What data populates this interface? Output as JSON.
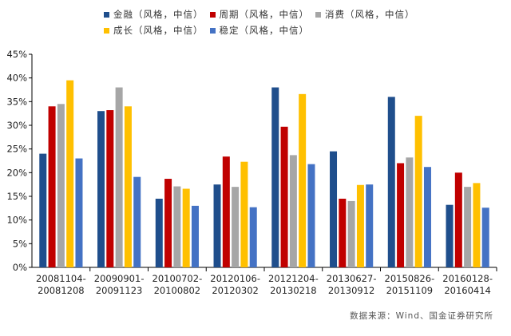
{
  "chart_data": {
    "type": "bar",
    "categories": [
      [
        "20081104-",
        "20081208"
      ],
      [
        "20090901-",
        "20091123"
      ],
      [
        "20100702-",
        "20100802"
      ],
      [
        "20120106-",
        "20120302"
      ],
      [
        "20121204-",
        "20130218"
      ],
      [
        "20130627-",
        "20130912"
      ],
      [
        "20150826-",
        "20151109"
      ],
      [
        "20160128-",
        "20160414"
      ]
    ],
    "series": [
      {
        "name": "金融（风格，中信）",
        "color": "#1f4e8c",
        "values": [
          24.0,
          33.0,
          14.5,
          17.5,
          38.0,
          24.5,
          36.0,
          13.2
        ]
      },
      {
        "name": "周期（风格，中信）",
        "color": "#c00000",
        "values": [
          34.0,
          33.2,
          18.7,
          23.4,
          29.7,
          14.5,
          22.0,
          20.0
        ]
      },
      {
        "name": "消费（风格，中信）",
        "color": "#a6a6a6",
        "values": [
          34.5,
          38.0,
          17.1,
          17.0,
          23.7,
          14.0,
          23.2,
          17.0
        ]
      },
      {
        "name": "成长（风格，中信）",
        "color": "#ffc000",
        "values": [
          39.5,
          34.0,
          16.6,
          22.3,
          36.6,
          17.4,
          32.0,
          17.8
        ]
      },
      {
        "name": "稳定（风格，中信）",
        "color": "#4472c4",
        "values": [
          23.0,
          19.1,
          13.0,
          12.7,
          21.8,
          17.5,
          21.2,
          12.6
        ]
      }
    ],
    "yticks": [
      "0%",
      "5%",
      "10%",
      "15%",
      "20%",
      "25%",
      "30%",
      "35%",
      "40%",
      "45%"
    ],
    "ylim": [
      0,
      45
    ],
    "grid": false,
    "legend_position": "top"
  },
  "source": "数据来源：Wind、国金证券研究所"
}
